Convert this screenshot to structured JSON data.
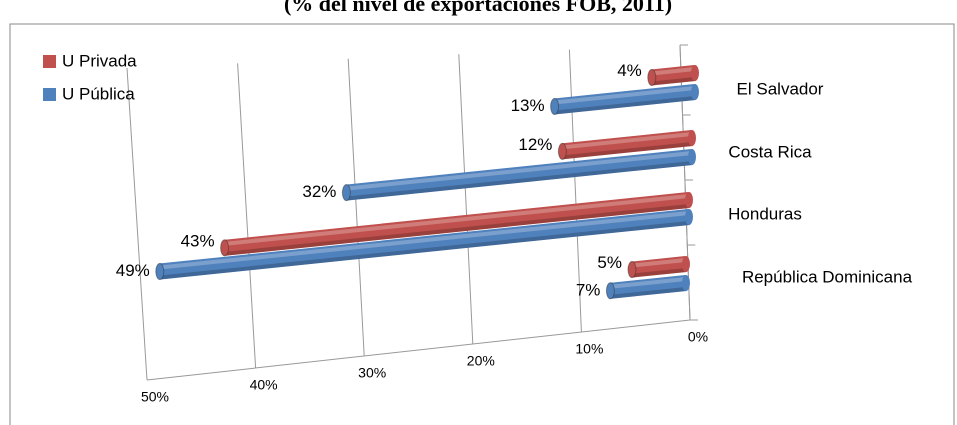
{
  "chart_data": {
    "type": "bar",
    "orientation": "horizontal",
    "title": "(% del nivel de exportaciones FOB, 2011)",
    "categories": [
      "El Salvador",
      "Costa Rica",
      "Honduras",
      "República Dominicana"
    ],
    "series": [
      {
        "name": "U Privada",
        "color": "#c0504d",
        "values": [
          4,
          12,
          43,
          5
        ],
        "value_labels": [
          "4%",
          "12%",
          "43%",
          "5%"
        ]
      },
      {
        "name": "U Pública",
        "color": "#4f81bd",
        "values": [
          13,
          32,
          49,
          7
        ],
        "value_labels": [
          "13%",
          "32%",
          "49%",
          "7%"
        ]
      }
    ],
    "xlim": [
      0,
      50
    ],
    "reversed": true,
    "xticks": [
      {
        "value": 0,
        "label": "0%"
      },
      {
        "value": 10,
        "label": "10%"
      },
      {
        "value": 20,
        "label": "20%"
      },
      {
        "value": 30,
        "label": "30%"
      },
      {
        "value": 40,
        "label": "40%"
      },
      {
        "value": 50,
        "label": "50%"
      }
    ],
    "grid": true,
    "legend": "top-left"
  }
}
